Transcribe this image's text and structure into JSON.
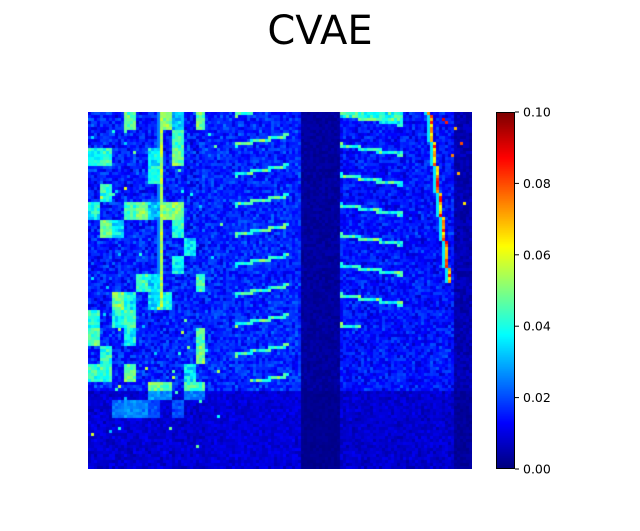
{
  "chart_data": {
    "type": "heatmap",
    "title": "CVAE",
    "xlabel": "",
    "ylabel": "",
    "axes_visible": false,
    "colormap": "jet",
    "colorbar": {
      "vmin": 0.0,
      "vmax": 0.1,
      "ticks": [
        {
          "value": 0.0,
          "label": "0.00"
        },
        {
          "value": 0.02,
          "label": "0.02"
        },
        {
          "value": 0.04,
          "label": "0.04"
        },
        {
          "value": 0.06,
          "label": "0.06"
        },
        {
          "value": 0.08,
          "label": "0.08"
        },
        {
          "value": 0.1,
          "label": "0.10"
        }
      ]
    },
    "grid_size": {
      "cols": 128,
      "rows": 119
    },
    "value_range_observed": [
      0.0,
      0.1
    ]
  }
}
